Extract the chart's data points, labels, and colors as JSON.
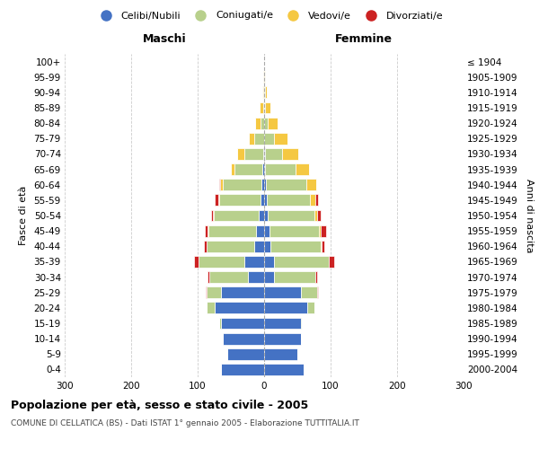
{
  "age_groups": [
    "0-4",
    "5-9",
    "10-14",
    "15-19",
    "20-24",
    "25-29",
    "30-34",
    "35-39",
    "40-44",
    "45-49",
    "50-54",
    "55-59",
    "60-64",
    "65-69",
    "70-74",
    "75-79",
    "80-84",
    "85-89",
    "90-94",
    "95-99",
    "100+"
  ],
  "birth_years": [
    "2000-2004",
    "1995-1999",
    "1990-1994",
    "1985-1989",
    "1980-1984",
    "1975-1979",
    "1970-1974",
    "1965-1969",
    "1960-1964",
    "1955-1959",
    "1950-1954",
    "1945-1949",
    "1940-1944",
    "1935-1939",
    "1930-1934",
    "1925-1929",
    "1920-1924",
    "1915-1919",
    "1910-1914",
    "1905-1909",
    "≤ 1904"
  ],
  "colors": {
    "celibi": "#4472C4",
    "coniugati": "#B8D08C",
    "vedovi": "#F5C842",
    "divorziati": "#CC2222"
  },
  "males": {
    "celibi": [
      65,
      55,
      62,
      65,
      75,
      65,
      25,
      30,
      15,
      12,
      8,
      5,
      4,
      3,
      2,
      0,
      0,
      0,
      0,
      0,
      0
    ],
    "coniugati": [
      0,
      0,
      0,
      3,
      12,
      22,
      58,
      68,
      72,
      72,
      68,
      62,
      58,
      42,
      28,
      15,
      5,
      2,
      1,
      0,
      0
    ],
    "vedovi": [
      0,
      0,
      0,
      0,
      0,
      0,
      0,
      0,
      0,
      1,
      1,
      2,
      4,
      5,
      10,
      8,
      8,
      5,
      2,
      1,
      0
    ],
    "divorziati": [
      0,
      0,
      0,
      0,
      0,
      1,
      2,
      8,
      4,
      4,
      3,
      5,
      1,
      0,
      0,
      0,
      0,
      0,
      0,
      0,
      0
    ]
  },
  "females": {
    "celibi": [
      60,
      50,
      55,
      55,
      65,
      55,
      15,
      15,
      10,
      8,
      5,
      4,
      3,
      2,
      2,
      0,
      0,
      0,
      0,
      0,
      0
    ],
    "coniugati": [
      0,
      0,
      0,
      2,
      10,
      25,
      62,
      82,
      75,
      75,
      70,
      65,
      60,
      45,
      25,
      15,
      5,
      2,
      1,
      0,
      0
    ],
    "vedovi": [
      0,
      0,
      0,
      0,
      0,
      0,
      0,
      0,
      1,
      2,
      5,
      8,
      15,
      20,
      25,
      20,
      15,
      8,
      3,
      1,
      0
    ],
    "divorziati": [
      0,
      0,
      0,
      0,
      0,
      1,
      3,
      8,
      5,
      8,
      5,
      4,
      1,
      0,
      0,
      0,
      0,
      0,
      0,
      0,
      0
    ]
  },
  "title": "Popolazione per età, sesso e stato civile - 2005",
  "subtitle": "COMUNE DI CELLATICA (BS) - Dati ISTAT 1° gennaio 2005 - Elaborazione TUTTITALIA.IT",
  "xlabel_left": "Maschi",
  "xlabel_right": "Femmine",
  "ylabel_left": "Fasce di età",
  "ylabel_right": "Anni di nascita",
  "xlim": 300,
  "legend_labels": [
    "Celibi/Nubili",
    "Coniugati/e",
    "Vedovi/e",
    "Divorziati/e"
  ]
}
